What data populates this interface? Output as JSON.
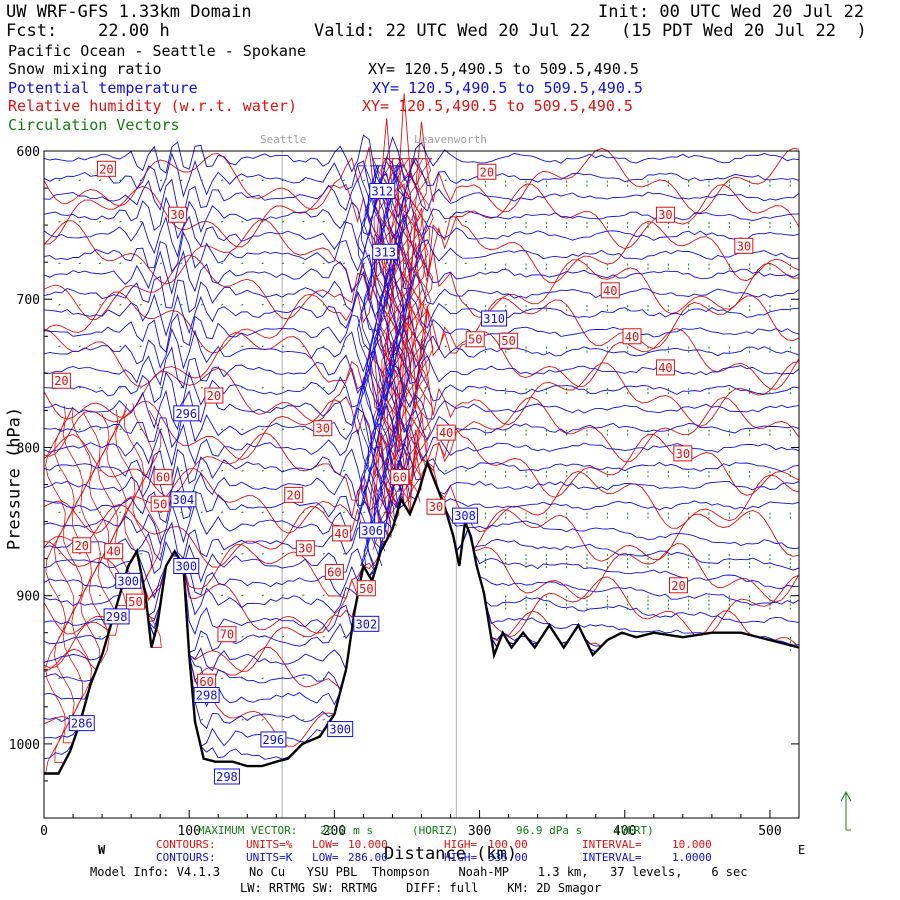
{
  "header": {
    "line1_left": "UW WRF-GFS 1.33km Domain",
    "line1_right": "Init: 00 UTC Wed 20 Jul 22",
    "line2_left": "Fcst:    22.00 h",
    "line2_right": "Valid: 22 UTC Wed 20 Jul 22   (15 PDT Wed 20 Jul 22  )",
    "line3": "Pacific Ocean - Seattle - Spokane",
    "fields": [
      {
        "name": "Snow mixing ratio",
        "xy": "XY= 120.5,490.5 to 509.5,490.5",
        "color": "#000000"
      },
      {
        "name": "Potential temperature",
        "xy": "XY= 120.5,490.5 to 509.5,490.5",
        "color": "#1010e0"
      },
      {
        "name": "Relative humidity (w.r.t. water)",
        "xy": "XY= 120.5,490.5 to 509.5,490.5",
        "color": "#e01010"
      },
      {
        "name": "Circulation Vectors",
        "xy": "",
        "color": "#108010"
      }
    ]
  },
  "chart_data": {
    "type": "cross-section",
    "xlabel": "Distance (km)",
    "ylabel": "Pressure (hPa)",
    "x_range": [
      0,
      520
    ],
    "y_range": [
      1050,
      600
    ],
    "x_ticks": [
      "0",
      "100",
      "200",
      "300",
      "400",
      "500"
    ],
    "y_ticks": [
      "600",
      "700",
      "800",
      "900",
      "1000"
    ],
    "y_tick_values": [
      600,
      700,
      800,
      900,
      1000
    ],
    "x_tick_values": [
      0,
      100,
      200,
      300,
      400,
      500
    ],
    "left_end_label": "W",
    "right_end_label": "E",
    "place_markers": [
      {
        "name": "Seattle",
        "x": 164
      },
      {
        "name": "Leavenworth",
        "x": 284
      }
    ],
    "terrain_profile": [
      [
        0,
        1020
      ],
      [
        10,
        1020
      ],
      [
        18,
        1005
      ],
      [
        25,
        985
      ],
      [
        32,
        960
      ],
      [
        40,
        940
      ],
      [
        46,
        920
      ],
      [
        52,
        900
      ],
      [
        58,
        880
      ],
      [
        64,
        870
      ],
      [
        70,
        900
      ],
      [
        74,
        935
      ],
      [
        78,
        920
      ],
      [
        84,
        880
      ],
      [
        90,
        870
      ],
      [
        96,
        880
      ],
      [
        100,
        940
      ],
      [
        104,
        985
      ],
      [
        110,
        1010
      ],
      [
        118,
        1012
      ],
      [
        130,
        1012
      ],
      [
        140,
        1015
      ],
      [
        150,
        1015
      ],
      [
        160,
        1012
      ],
      [
        168,
        1010
      ],
      [
        178,
        1000
      ],
      [
        190,
        995
      ],
      [
        200,
        980
      ],
      [
        208,
        950
      ],
      [
        214,
        910
      ],
      [
        220,
        880
      ],
      [
        226,
        890
      ],
      [
        232,
        870
      ],
      [
        240,
        855
      ],
      [
        246,
        835
      ],
      [
        252,
        845
      ],
      [
        258,
        830
      ],
      [
        264,
        810
      ],
      [
        270,
        825
      ],
      [
        276,
        840
      ],
      [
        282,
        860
      ],
      [
        286,
        880
      ],
      [
        290,
        850
      ],
      [
        294,
        860
      ],
      [
        298,
        880
      ],
      [
        303,
        898
      ],
      [
        310,
        940
      ],
      [
        316,
        925
      ],
      [
        322,
        935
      ],
      [
        330,
        925
      ],
      [
        338,
        935
      ],
      [
        348,
        920
      ],
      [
        358,
        935
      ],
      [
        368,
        920
      ],
      [
        378,
        940
      ],
      [
        388,
        930
      ],
      [
        398,
        925
      ],
      [
        408,
        928
      ],
      [
        420,
        925
      ],
      [
        440,
        928
      ],
      [
        460,
        925
      ],
      [
        480,
        925
      ],
      [
        500,
        930
      ],
      [
        520,
        935
      ]
    ],
    "contours": {
      "rh": {
        "units": "%",
        "low": "10.000",
        "high": "100.00",
        "interval": "10.000",
        "color": "#e01010"
      },
      "theta": {
        "units": "K",
        "low": "286.00",
        "high": "335.00",
        "interval": "1.0000",
        "color": "#1010e0"
      }
    },
    "rh_labels": [
      {
        "text": "20",
        "x": 43,
        "p": 612
      },
      {
        "text": "30",
        "x": 92,
        "p": 643
      },
      {
        "text": "20",
        "x": 12,
        "p": 755
      },
      {
        "text": "20",
        "x": 117,
        "p": 765
      },
      {
        "text": "30",
        "x": 192,
        "p": 787
      },
      {
        "text": "20",
        "x": 172,
        "p": 832
      },
      {
        "text": "30",
        "x": 180,
        "p": 868
      },
      {
        "text": "40",
        "x": 205,
        "p": 858
      },
      {
        "text": "60",
        "x": 200,
        "p": 884
      },
      {
        "text": "50",
        "x": 222,
        "p": 895
      },
      {
        "text": "60",
        "x": 245,
        "p": 820
      },
      {
        "text": "40",
        "x": 277,
        "p": 790
      },
      {
        "text": "30",
        "x": 270,
        "p": 840
      },
      {
        "text": "50",
        "x": 297,
        "p": 727
      },
      {
        "text": "50",
        "x": 320,
        "p": 728
      },
      {
        "text": "40",
        "x": 390,
        "p": 694
      },
      {
        "text": "40",
        "x": 405,
        "p": 725
      },
      {
        "text": "40",
        "x": 428,
        "p": 746
      },
      {
        "text": "30",
        "x": 428,
        "p": 643
      },
      {
        "text": "30",
        "x": 482,
        "p": 664
      },
      {
        "text": "30",
        "x": 440,
        "p": 804
      },
      {
        "text": "20",
        "x": 437,
        "p": 893
      },
      {
        "text": "20",
        "x": 305,
        "p": 614
      },
      {
        "text": "20",
        "x": 26,
        "p": 866
      },
      {
        "text": "40",
        "x": 48,
        "p": 870
      },
      {
        "text": "50",
        "x": 80,
        "p": 838
      },
      {
        "text": "60",
        "x": 82,
        "p": 820
      },
      {
        "text": "70",
        "x": 126,
        "p": 926
      },
      {
        "text": "60",
        "x": 112,
        "p": 958
      },
      {
        "text": "50",
        "x": 63,
        "p": 904
      }
    ],
    "theta_labels": [
      {
        "text": "312",
        "x": 233,
        "p": 627
      },
      {
        "text": "313",
        "x": 235,
        "p": 668
      },
      {
        "text": "310",
        "x": 310,
        "p": 713
      },
      {
        "text": "296",
        "x": 98,
        "p": 777
      },
      {
        "text": "304",
        "x": 96,
        "p": 835
      },
      {
        "text": "300",
        "x": 98,
        "p": 880
      },
      {
        "text": "300",
        "x": 58,
        "p": 890
      },
      {
        "text": "298",
        "x": 50,
        "p": 914
      },
      {
        "text": "302",
        "x": 222,
        "p": 919
      },
      {
        "text": "306",
        "x": 226,
        "p": 856
      },
      {
        "text": "308",
        "x": 290,
        "p": 846
      },
      {
        "text": "298",
        "x": 112,
        "p": 967
      },
      {
        "text": "296",
        "x": 158,
        "p": 997
      },
      {
        "text": "300",
        "x": 204,
        "p": 990
      },
      {
        "text": "286",
        "x": 26,
        "p": 986
      },
      {
        "text": "298",
        "x": 126,
        "p": 1022
      }
    ],
    "footer": {
      "max_vector_label": "MAXIMUM VECTOR:",
      "max_vector_h": "20.2 m s",
      "horiz": "(HORIZ)",
      "max_vector_v": "96.9 dPa s",
      "vert": "(VERT)",
      "rh_line": [
        "CONTOURS:",
        "UNITS=%",
        "LOW=",
        "10.000",
        "HIGH=",
        "100.00",
        "INTERVAL=",
        "10.000"
      ],
      "theta_line": [
        "CONTOURS:",
        "UNITS=K",
        "LOW=",
        "286.00",
        "HIGH=",
        "335.00",
        "INTERVAL=",
        "1.0000"
      ],
      "model_info": "Model Info: V4.1.3    No Cu   YSU PBL  Thompson    Noah-MP    1.3 km,   37 levels,    6 sec",
      "model_info2": "LW: RRTMG SW: RRTMG    DIFF: full    KM: 2D Smagor"
    }
  }
}
